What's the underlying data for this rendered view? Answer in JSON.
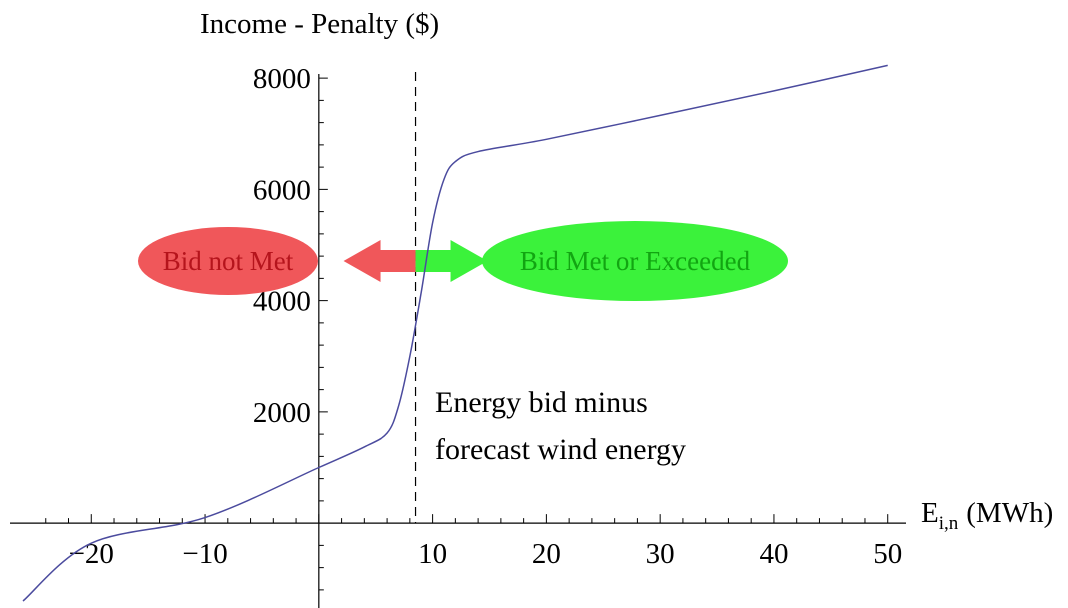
{
  "chart_data": {
    "type": "line",
    "title": "",
    "ylabel": "Income - Penalty ($)",
    "xlabel_main": "E",
    "xlabel_sub": "i,n",
    "xlabel_unit": "(MWh)",
    "xlim": [
      -26,
      50.2
    ],
    "ylim": [
      -1400,
      8200
    ],
    "xticks": [
      -20,
      -10,
      10,
      20,
      30,
      40,
      50
    ],
    "xtick_labels": [
      "−20",
      "−10",
      "10",
      "20",
      "30",
      "40",
      "50"
    ],
    "yticks": [
      2000,
      4000,
      6000,
      8000
    ],
    "ytick_labels": [
      "2000",
      "4000",
      "6000",
      "8000"
    ],
    "bid_line_x": 8.5,
    "series": [
      {
        "color": "#4b4b9e",
        "x": [
          -26,
          -20,
          -10,
          0,
          4,
          6,
          7,
          8,
          9,
          10,
          11,
          12,
          14,
          20,
          30,
          40,
          50
        ],
        "y": [
          -1400,
          -360,
          100,
          1000,
          1370,
          1620,
          2100,
          3000,
          4150,
          5400,
          6180,
          6500,
          6680,
          6900,
          7330,
          7770,
          8230
        ]
      }
    ],
    "annotations": {
      "note_line1": "Energy bid minus",
      "note_line2": "forecast wind energy",
      "left_bubble": "Bid not Met",
      "right_bubble": "Bid Met or Exceeded"
    },
    "colors": {
      "left_bubble_fill": "#f0575a",
      "left_bubble_text": "#b5141c",
      "left_arrow": "#f0575a",
      "right_bubble_fill": "#3bf23b",
      "right_bubble_text": "#12a512",
      "right_arrow": "#3bf23b",
      "curve": "#4b4b9e"
    }
  }
}
